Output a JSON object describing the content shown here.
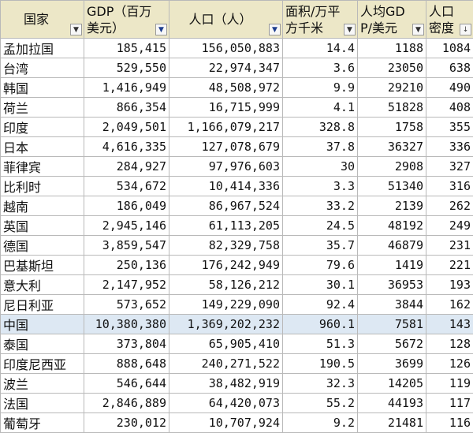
{
  "headers": [
    {
      "label": "国家",
      "filter_icon": "dropdown-arrow-icon"
    },
    {
      "label": "GDP（百万美元）",
      "filter_icon": "filter-active-icon"
    },
    {
      "label": "人口（人）",
      "filter_icon": "filter-active-icon"
    },
    {
      "label": "面积/万平方千米",
      "filter_icon": "dropdown-arrow-icon"
    },
    {
      "label": "人均GDP/美元",
      "filter_icon": "dropdown-arrow-icon"
    },
    {
      "label": "人口密度",
      "filter_icon": "sort-descending-icon"
    }
  ],
  "highlight_color": "#dde8f3",
  "header_color": "#ece7c7",
  "rows": [
    {
      "country": "孟加拉国",
      "gdp": "185,415",
      "population": "156,050,883",
      "area": "14.4",
      "gdp_per_capita": "1188",
      "density": "1084"
    },
    {
      "country": "台湾",
      "gdp": "529,550",
      "population": "22,974,347",
      "area": "3.6",
      "gdp_per_capita": "23050",
      "density": "638"
    },
    {
      "country": "韩国",
      "gdp": "1,416,949",
      "population": "48,508,972",
      "area": "9.9",
      "gdp_per_capita": "29210",
      "density": "490"
    },
    {
      "country": "荷兰",
      "gdp": "866,354",
      "population": "16,715,999",
      "area": "4.1",
      "gdp_per_capita": "51828",
      "density": "408"
    },
    {
      "country": "印度",
      "gdp": "2,049,501",
      "population": "1,166,079,217",
      "area": "328.8",
      "gdp_per_capita": "1758",
      "density": "355"
    },
    {
      "country": "日本",
      "gdp": "4,616,335",
      "population": "127,078,679",
      "area": "37.8",
      "gdp_per_capita": "36327",
      "density": "336"
    },
    {
      "country": "菲律宾",
      "gdp": "284,927",
      "population": "97,976,603",
      "area": "30",
      "gdp_per_capita": "2908",
      "density": "327"
    },
    {
      "country": "比利时",
      "gdp": "534,672",
      "population": "10,414,336",
      "area": "3.3",
      "gdp_per_capita": "51340",
      "density": "316"
    },
    {
      "country": "越南",
      "gdp": "186,049",
      "population": "86,967,524",
      "area": "33.2",
      "gdp_per_capita": "2139",
      "density": "262"
    },
    {
      "country": "英国",
      "gdp": "2,945,146",
      "population": "61,113,205",
      "area": "24.5",
      "gdp_per_capita": "48192",
      "density": "249"
    },
    {
      "country": "德国",
      "gdp": "3,859,547",
      "population": "82,329,758",
      "area": "35.7",
      "gdp_per_capita": "46879",
      "density": "231"
    },
    {
      "country": "巴基斯坦",
      "gdp": "250,136",
      "population": "176,242,949",
      "area": "79.6",
      "gdp_per_capita": "1419",
      "density": "221"
    },
    {
      "country": "意大利",
      "gdp": "2,147,952",
      "population": "58,126,212",
      "area": "30.1",
      "gdp_per_capita": "36953",
      "density": "193"
    },
    {
      "country": "尼日利亚",
      "gdp": "573,652",
      "population": "149,229,090",
      "area": "92.4",
      "gdp_per_capita": "3844",
      "density": "162"
    },
    {
      "country": "中国",
      "gdp": "10,380,380",
      "population": "1,369,202,232",
      "area": "960.1",
      "gdp_per_capita": "7581",
      "density": "143",
      "highlighted": true
    },
    {
      "country": "泰国",
      "gdp": "373,804",
      "population": "65,905,410",
      "area": "51.3",
      "gdp_per_capita": "5672",
      "density": "128"
    },
    {
      "country": "印度尼西亚",
      "gdp": "888,648",
      "population": "240,271,522",
      "area": "190.5",
      "gdp_per_capita": "3699",
      "density": "126"
    },
    {
      "country": "波兰",
      "gdp": "546,644",
      "population": "38,482,919",
      "area": "32.3",
      "gdp_per_capita": "14205",
      "density": "119"
    },
    {
      "country": "法国",
      "gdp": "2,846,889",
      "population": "64,420,073",
      "area": "55.2",
      "gdp_per_capita": "44193",
      "density": "117"
    },
    {
      "country": "葡萄牙",
      "gdp": "230,012",
      "population": "10,707,924",
      "area": "9.2",
      "gdp_per_capita": "21481",
      "density": "116"
    }
  ]
}
